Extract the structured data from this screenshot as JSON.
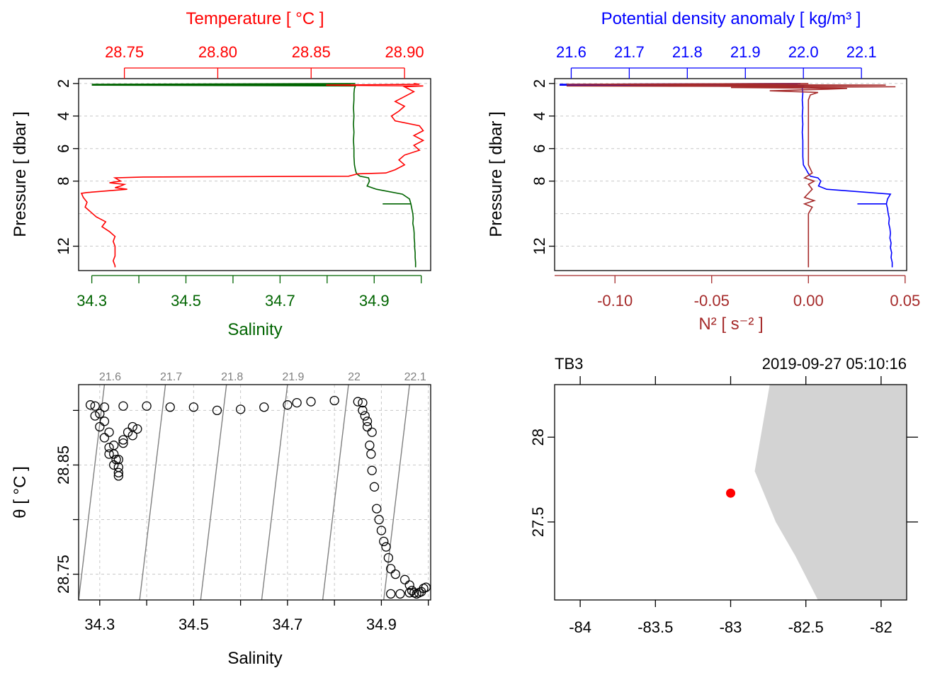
{
  "colors": {
    "temperature": "#ff0000",
    "salinity": "#006400",
    "density": "#0000ff",
    "n2": "#a52a2a",
    "grid": "#c8c8c8",
    "land": "#d3d3d3",
    "station": "#ff0000",
    "isopycnal": "#808080"
  },
  "chart_data": [
    {
      "type": "line",
      "id": "TS-profile",
      "top_axis_title": "Temperature [ °C ]",
      "bottom_axis_title": "Salinity",
      "ylabel": "Pressure [ dbar ]",
      "temperature_ticks": [
        "28.75",
        "28.80",
        "28.85",
        "28.90"
      ],
      "temperature_tick_values": [
        28.75,
        28.8,
        28.85,
        28.9
      ],
      "temperature_lim": [
        28.7255,
        28.914
      ],
      "salinity_ticks": [
        "34.3",
        "34.5",
        "34.7",
        "34.9"
      ],
      "salinity_minor_ticks": [
        34.4,
        34.6,
        34.8,
        35.0
      ],
      "salinity_tick_values": [
        34.3,
        34.5,
        34.7,
        34.9
      ],
      "salinity_lim": [
        34.272,
        35.02
      ],
      "pressure_ticks": [
        "2",
        "4",
        "6",
        "8",
        "12"
      ],
      "pressure_tick_values": [
        2,
        4,
        6,
        8,
        12
      ],
      "pressure_lim": [
        1.7,
        13.5
      ],
      "series": [
        {
          "name": "Temperature",
          "p": [
            2.0,
            2.05,
            2.1,
            2.15,
            2.2,
            2.5,
            2.8,
            3.1,
            3.4,
            3.7,
            4.0,
            4.3,
            4.6,
            4.9,
            5.2,
            5.5,
            5.8,
            6.1,
            6.4,
            6.7,
            7.0,
            7.3,
            7.5,
            7.55,
            7.7,
            7.75,
            7.8,
            8.0,
            8.1,
            8.2,
            8.3,
            8.4,
            8.5,
            8.7,
            8.75,
            9.0,
            9.3,
            9.6,
            9.9,
            10.2,
            10.5,
            10.8,
            11.1,
            11.4,
            11.7,
            12.0,
            12.3,
            12.6,
            12.9,
            13.2,
            13.3
          ],
          "v": [
            28.905,
            28.908,
            28.858,
            28.91,
            28.9,
            28.905,
            28.9,
            28.895,
            28.9,
            28.897,
            28.893,
            28.895,
            28.908,
            28.91,
            28.905,
            28.91,
            28.905,
            28.908,
            28.9,
            28.897,
            28.9,
            28.895,
            28.89,
            28.875,
            28.87,
            28.76,
            28.745,
            28.748,
            28.742,
            28.75,
            28.748,
            28.745,
            28.7515,
            28.73,
            28.727,
            28.728,
            28.73,
            28.729,
            28.732,
            28.735,
            28.74,
            28.738,
            28.742,
            28.745,
            28.744,
            28.745,
            28.745,
            28.745,
            28.744,
            28.745,
            28.745
          ]
        },
        {
          "name": "Salinity",
          "p": [
            2.0,
            2.05,
            2.08,
            2.1,
            2.15,
            2.3,
            2.6,
            3.0,
            3.5,
            4.0,
            4.5,
            5.0,
            5.5,
            6.0,
            6.5,
            7.0,
            7.3,
            7.5,
            7.6,
            7.7,
            7.8,
            8.0,
            8.3,
            8.5,
            8.8,
            9.1,
            9.4,
            9.7,
            10.0,
            10.3,
            10.6,
            10.9,
            11.2,
            11.5,
            11.8,
            12.1,
            12.4,
            12.7,
            13.0,
            13.3
          ],
          "v": [
            34.86,
            34.3,
            34.85,
            34.3,
            34.86,
            34.858,
            34.857,
            34.857,
            34.856,
            34.857,
            34.856,
            34.857,
            34.856,
            34.857,
            34.857,
            34.858,
            34.86,
            34.862,
            34.865,
            34.87,
            34.888,
            34.89,
            34.885,
            34.905,
            34.96,
            34.975,
            34.978,
            34.98,
            34.982,
            34.983,
            34.982,
            34.984,
            34.985,
            34.985,
            34.986,
            34.986,
            34.987,
            34.987,
            34.988,
            34.988
          ]
        }
      ],
      "spike_segment": {
        "name": "Salinity",
        "p": 9.4,
        "v_from": 34.918,
        "v_to": 34.978
      }
    },
    {
      "type": "line",
      "id": "density-N2-profile",
      "top_axis_title": "Potential density anomaly [ kg/m³ ]",
      "bottom_axis_title": "N² [ s⁻² ]",
      "ylabel": "Pressure [ dbar ]",
      "density_ticks": [
        "21.6",
        "21.7",
        "21.8",
        "21.9",
        "22.0",
        "22.1"
      ],
      "density_tick_values": [
        21.6,
        21.7,
        21.8,
        21.9,
        22.0,
        22.1
      ],
      "density_lim": [
        21.5714,
        22.1779
      ],
      "n2_ticks": [
        "-0.10",
        "-0.05",
        "0.00",
        "0.05"
      ],
      "n2_tick_values": [
        -0.1,
        -0.05,
        0.0,
        0.05
      ],
      "n2_minor_ticks": [
        -0.15
      ],
      "n2_lim": [
        -0.1312,
        0.0508
      ],
      "pressure_ticks": [
        "2",
        "4",
        "6",
        "8",
        "12"
      ],
      "pressure_tick_values": [
        2,
        4,
        6,
        8,
        12
      ],
      "pressure_lim": [
        1.7,
        13.5
      ],
      "series": [
        {
          "name": "Potential density anomaly",
          "p": [
            2.0,
            2.05,
            2.08,
            2.1,
            2.15,
            2.3,
            2.6,
            3.0,
            3.5,
            4.0,
            4.5,
            5.0,
            5.5,
            6.0,
            6.5,
            7.0,
            7.3,
            7.5,
            7.6,
            7.7,
            7.8,
            8.0,
            8.3,
            8.5,
            8.8,
            9.1,
            9.4,
            9.7,
            10.0,
            10.3,
            10.6,
            10.9,
            11.2,
            11.5,
            11.8,
            12.1,
            12.4,
            12.7,
            13.0,
            13.3
          ],
          "v": [
            21.995,
            21.58,
            21.99,
            21.58,
            22.0,
            21.998,
            21.999,
            21.998,
            21.999,
            21.998,
            21.999,
            21.998,
            21.999,
            21.999,
            21.999,
            22.0,
            22.005,
            22.008,
            22.01,
            22.012,
            22.025,
            22.03,
            22.026,
            22.04,
            22.15,
            22.145,
            22.143,
            22.145,
            22.146,
            22.148,
            22.147,
            22.149,
            22.15,
            22.149,
            22.151,
            22.15,
            22.152,
            22.151,
            22.153,
            22.153
          ]
        },
        {
          "name": "N2",
          "p": [
            2.0,
            2.05,
            2.1,
            2.15,
            2.2,
            2.25,
            2.3,
            2.35,
            2.45,
            2.55,
            2.7,
            3.0,
            4.0,
            5.0,
            6.0,
            7.0,
            7.5,
            7.8,
            8.0,
            8.2,
            8.5,
            9.0,
            9.2,
            9.4,
            9.6,
            10.0,
            11.0,
            12.0,
            13.3
          ],
          "v": [
            0.0,
            -0.125,
            0.04,
            -0.125,
            0.045,
            -0.04,
            0.02,
            0.01,
            -0.02,
            0.005,
            0.001,
            0.0,
            0.0,
            0.0,
            0.0,
            0.0,
            0.002,
            -0.002,
            0.003,
            0.0,
            0.002,
            -0.002,
            0.003,
            -0.002,
            0.002,
            0.0,
            0.0,
            0.0,
            0.0
          ]
        }
      ],
      "spike_segment": {
        "name": "Potential density anomaly",
        "p": 9.4,
        "v_from": 22.093,
        "v_to": 22.143
      }
    },
    {
      "type": "scatter",
      "id": "theta-S-diagram",
      "xlabel": "Salinity",
      "ylabel": "θ [ °C ]",
      "x_ticks": [
        "34.3",
        "34.5",
        "34.7",
        "34.9"
      ],
      "x_tick_values": [
        34.3,
        34.5,
        34.7,
        34.9
      ],
      "x_minor_ticks": [
        34.4,
        34.6,
        34.8,
        35.0
      ],
      "xlim": [
        34.255,
        35.005
      ],
      "y_ticks": [
        "28.75",
        "28.85"
      ],
      "y_tick_values": [
        28.75,
        28.85
      ],
      "y_minor_ticks": [
        28.8,
        28.9
      ],
      "ylim": [
        28.7264,
        28.9236
      ],
      "isopycnal_labels": [
        "21.6",
        "21.7",
        "21.8",
        "21.9",
        "22",
        "22.1"
      ],
      "isopycnals": [
        {
          "label": "21.6",
          "s_at_top": 34.31,
          "s_at_bottom": 34.255
        },
        {
          "label": "21.7",
          "s_at_top": 34.44,
          "s_at_bottom": 34.385
        },
        {
          "label": "21.8",
          "s_at_top": 34.57,
          "s_at_bottom": 34.515
        },
        {
          "label": "21.9",
          "s_at_top": 34.7,
          "s_at_bottom": 34.645
        },
        {
          "label": "22",
          "s_at_top": 34.83,
          "s_at_bottom": 34.775
        },
        {
          "label": "22.1",
          "s_at_top": 34.96,
          "s_at_bottom": 34.905
        }
      ],
      "points": {
        "s": [
          34.28,
          34.29,
          34.31,
          34.35,
          34.4,
          34.45,
          34.5,
          34.55,
          34.6,
          34.65,
          34.7,
          34.72,
          34.75,
          34.8,
          34.85,
          34.86,
          34.87,
          34.88,
          34.29,
          34.3,
          34.31,
          34.32,
          34.33,
          34.34,
          34.33,
          34.34,
          34.35,
          34.36,
          34.37,
          34.38,
          34.37,
          34.35,
          34.33,
          34.32,
          34.31,
          34.3,
          34.32,
          34.335,
          34.34,
          34.34,
          34.86,
          34.865,
          34.87,
          34.875,
          34.878,
          34.88,
          34.885,
          34.89,
          34.895,
          34.9,
          34.905,
          34.91,
          34.915,
          34.92,
          34.93,
          34.95,
          34.96,
          34.965,
          34.97,
          34.975,
          34.98,
          34.985,
          34.99,
          34.995,
          34.92,
          34.94,
          34.96
        ],
        "t": [
          28.905,
          28.904,
          28.903,
          28.904,
          28.904,
          28.903,
          28.903,
          28.9,
          28.901,
          28.903,
          28.905,
          28.907,
          28.908,
          28.909,
          28.908,
          28.9,
          28.89,
          28.88,
          28.895,
          28.885,
          28.875,
          28.866,
          28.86,
          28.855,
          28.85,
          28.843,
          28.87,
          28.88,
          28.885,
          28.883,
          28.877,
          28.873,
          28.868,
          28.88,
          28.89,
          28.897,
          28.86,
          28.855,
          28.848,
          28.84,
          28.907,
          28.895,
          28.885,
          28.868,
          28.86,
          28.845,
          28.83,
          28.81,
          28.8,
          28.79,
          28.78,
          28.775,
          28.765,
          28.755,
          28.75,
          28.745,
          28.74,
          28.735,
          28.733,
          28.732,
          28.733,
          28.734,
          28.737,
          28.738,
          28.732,
          28.732,
          28.733
        ]
      }
    },
    {
      "type": "map",
      "id": "station-map",
      "station_name": "TB3",
      "datetime": "2019-09-27 05:10:16",
      "x_ticks": [
        "-84",
        "-83.5",
        "-83",
        "-82.5",
        "-82"
      ],
      "x_tick_values": [
        -84,
        -83.5,
        -83,
        -82.5,
        -82
      ],
      "xlim": [
        -84.17,
        -81.83
      ],
      "y_ticks": [
        "28",
        "27.5"
      ],
      "y_tick_values": [
        28.0,
        27.5
      ],
      "ylim": [
        27.04,
        28.31
      ],
      "land_lon": [
        -82.74,
        -81.83,
        -81.83,
        -82.42,
        -82.57,
        -82.7,
        -82.84
      ],
      "land_lat": [
        28.31,
        28.31,
        27.04,
        27.04,
        27.3,
        27.5,
        27.8
      ],
      "station": {
        "lon": -83.0,
        "lat": 27.67
      }
    }
  ]
}
